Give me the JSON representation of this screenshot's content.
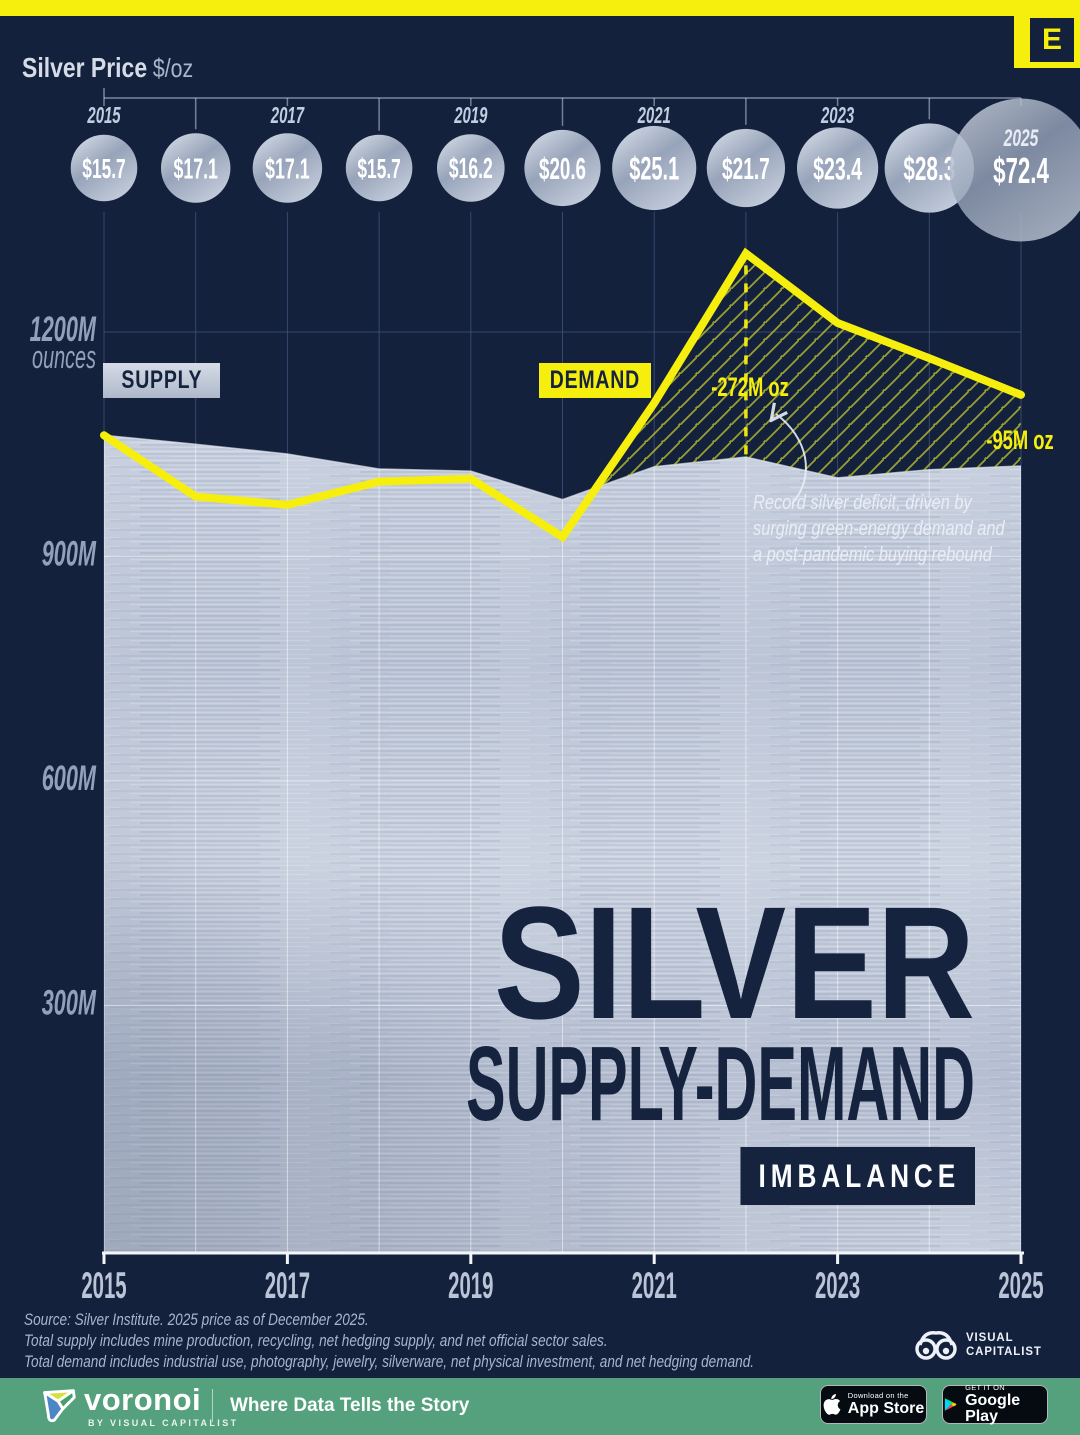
{
  "brand": {
    "elements_letter": "E"
  },
  "header": {
    "title": "Silver Price",
    "unit": "$/oz"
  },
  "chart_data": {
    "type": "area",
    "title": "Silver Supply-Demand Imbalance",
    "x": [
      2015,
      2016,
      2017,
      2018,
      2019,
      2020,
      2021,
      2022,
      2023,
      2024,
      2025
    ],
    "x_tick_labels": [
      2015,
      2017,
      2019,
      2021,
      2023,
      2025
    ],
    "ylabel": "ounces",
    "ylim": [
      0,
      1350
    ],
    "grid": true,
    "y_ticks": [
      {
        "value": 1200,
        "label": "1200M",
        "sub": "ounces"
      },
      {
        "value": 900,
        "label": "900M"
      },
      {
        "value": 600,
        "label": "600M"
      },
      {
        "value": 300,
        "label": "300M"
      }
    ],
    "series": [
      {
        "name": "SUPPLY",
        "type": "area",
        "style": "silver-metallic",
        "values": [
          1062,
          1050,
          1037,
          1017,
          1014,
          976,
          1020,
          1033,
          1005,
          1016,
          1021
        ]
      },
      {
        "name": "DEMAND",
        "type": "line",
        "color": "#f6ee0d",
        "values": [
          1062,
          980,
          969,
          1000,
          1004,
          926,
          1105,
          1305,
          1212,
          1165,
          1116
        ]
      }
    ],
    "price_series": {
      "name": "Silver Price $/oz",
      "values": [
        15.7,
        17.1,
        17.1,
        15.7,
        16.2,
        20.6,
        25.1,
        21.7,
        23.4,
        28.3,
        72.4
      ],
      "label_years": [
        2015,
        2017,
        2019,
        2021,
        2023,
        2025
      ]
    },
    "annotations": {
      "deficit_peak": {
        "year": 2022,
        "label": "-272M oz"
      },
      "deficit_latest": {
        "year": 2025,
        "label": "-95M oz"
      },
      "note_lines": [
        "Record silver deficit, driven by",
        "surging green-energy demand and",
        "a post-pandemic buying rebound"
      ]
    }
  },
  "title_block": {
    "line1": "SILVER",
    "line2": "SUPPLY-DEMAND",
    "line3": "IMBALANCE"
  },
  "source": {
    "lines": [
      "Source: Silver Institute. 2025 price as of December 2025.",
      "Total supply includes mine production, recycling, net hedging supply, and net official sector sales.",
      "Total demand includes industrial use, photography, jewelry, silverware, net physical investment, and net hedging demand."
    ]
  },
  "vc_logo": {
    "line1": "VISUAL",
    "line2": "CAPITALIST"
  },
  "footer": {
    "brand": "voronoi",
    "byline": "BY VISUAL CAPITALIST",
    "tagline": "Where Data Tells the Story",
    "appstore": {
      "top": "Download on the",
      "bottom": "App Store"
    },
    "gplay": {
      "top": "GET IT ON",
      "bottom": "Google Play"
    }
  },
  "colors": {
    "yellow": "#f6ee0d",
    "navy": "#13213d",
    "title_navy": "#16233e",
    "footer_green": "#55a07d"
  }
}
